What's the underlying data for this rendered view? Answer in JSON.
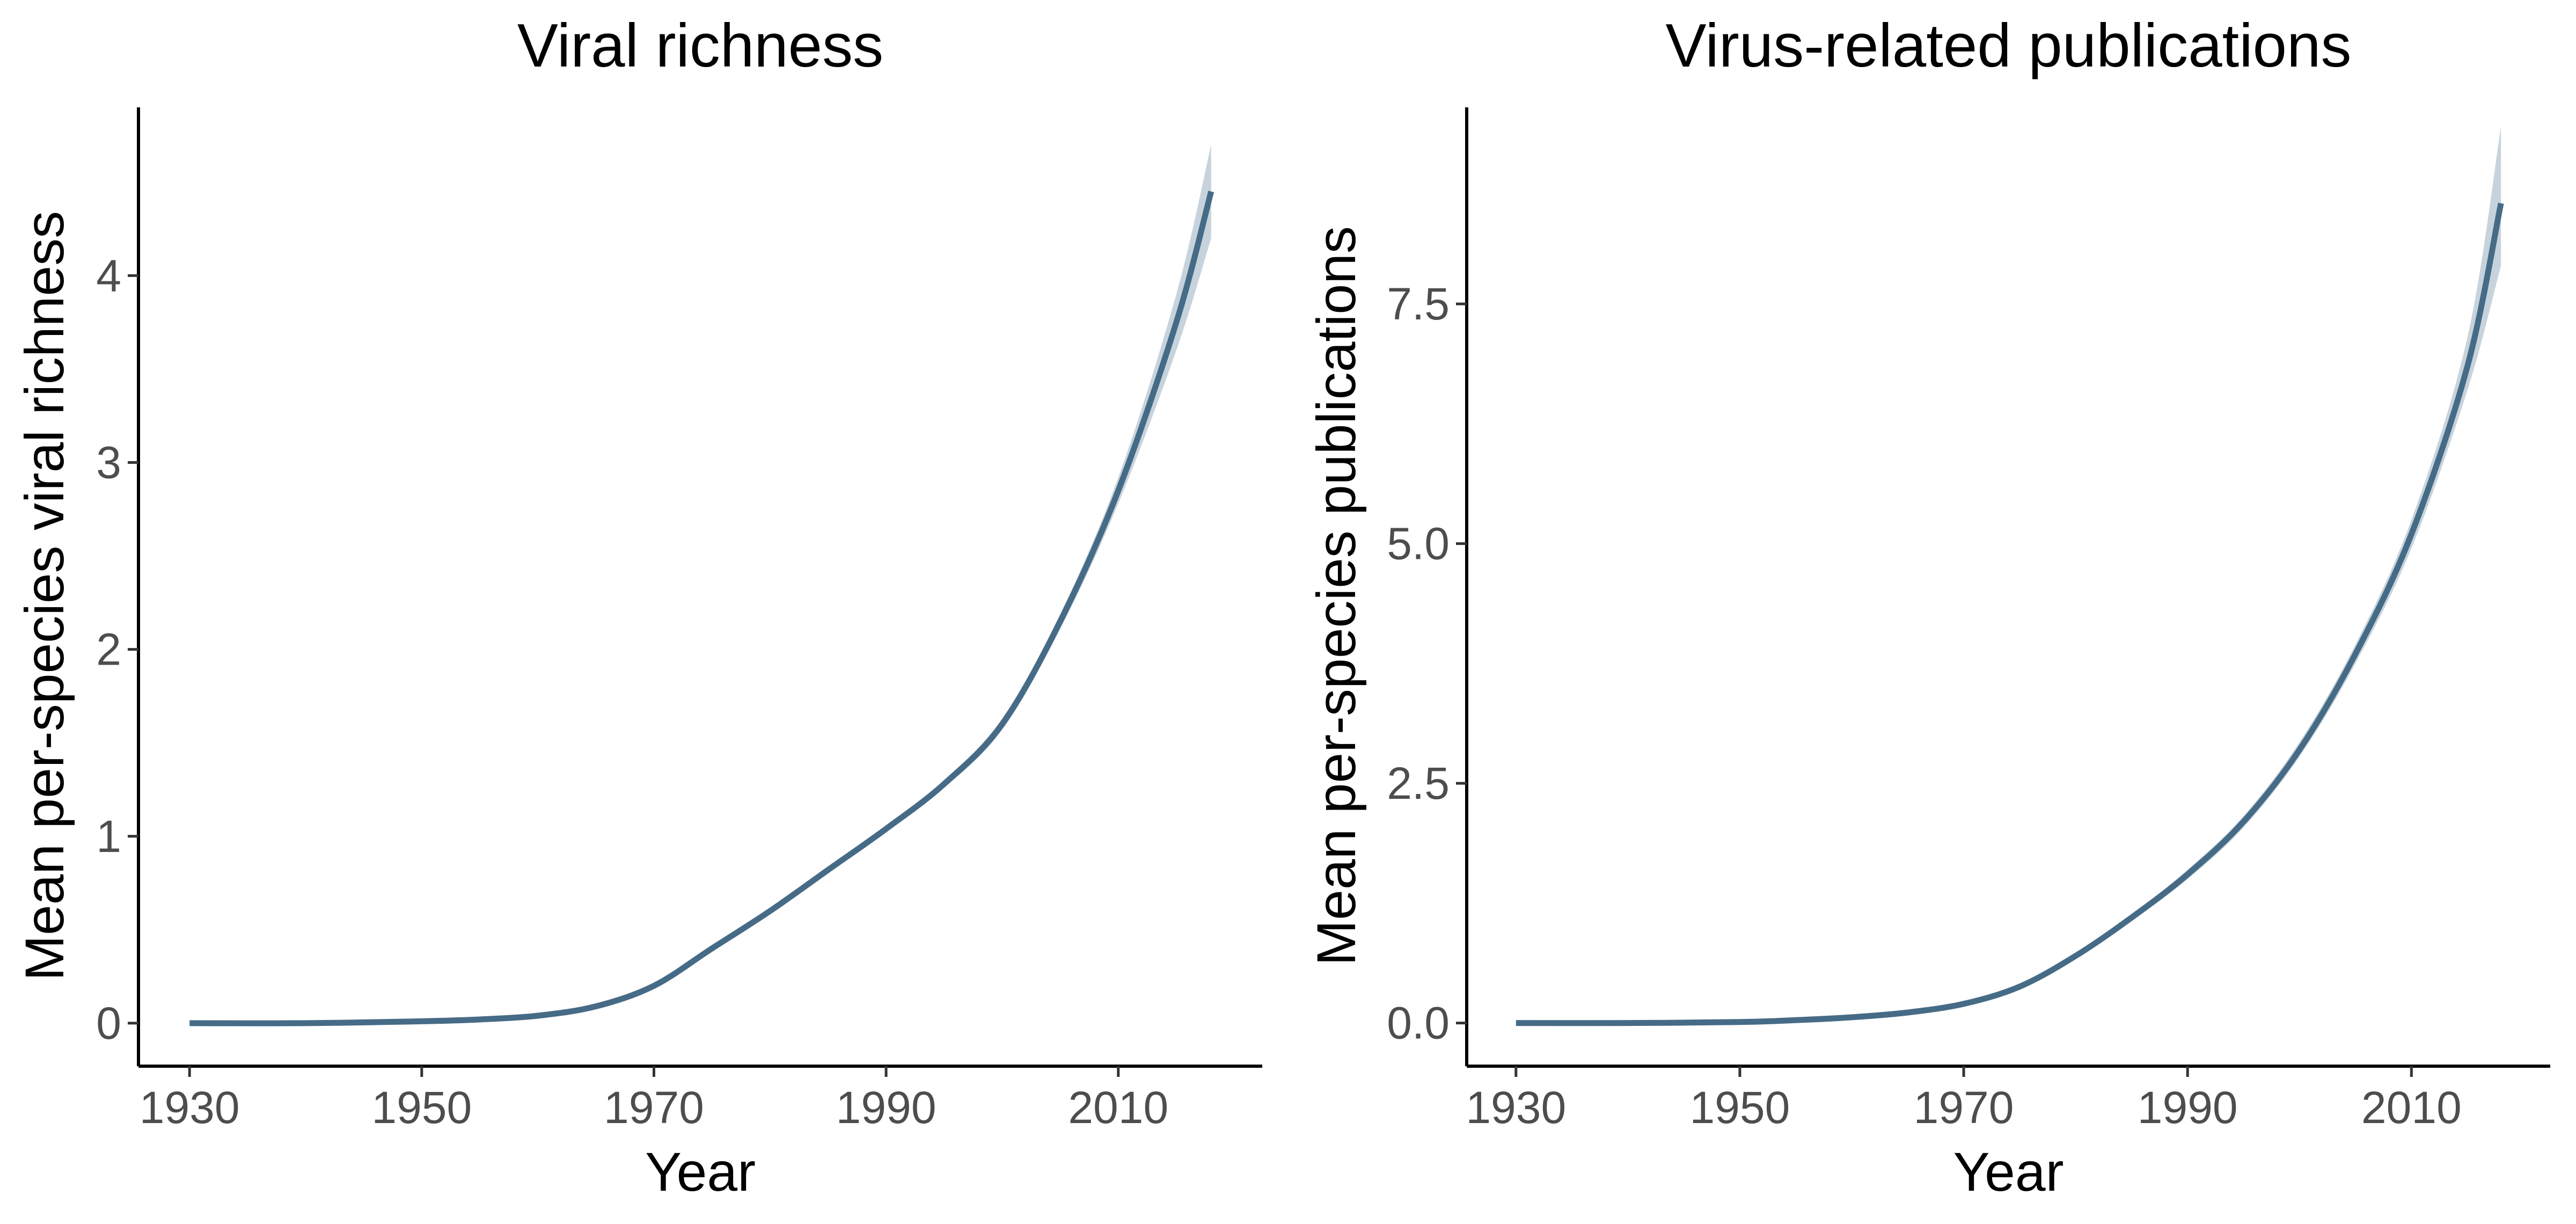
{
  "chart_data": [
    {
      "type": "line",
      "title": "Viral richness",
      "xlabel": "Year",
      "ylabel": "Mean per-species viral richness",
      "xlim": [
        1925.6,
        2022.4
      ],
      "ylim": [
        -0.23,
        4.9
      ],
      "xticks": [
        1930,
        1950,
        1970,
        1990,
        2010
      ],
      "xtick_labels": [
        "1930",
        "1950",
        "1970",
        "1990",
        "2010"
      ],
      "yticks": [
        0,
        1,
        2,
        3,
        4
      ],
      "ytick_labels": [
        "0",
        "1",
        "2",
        "3",
        "4"
      ],
      "grid": false,
      "legend": "none",
      "colors": {
        "line": "#466b86",
        "band": "#c7d3dc"
      },
      "series": [
        {
          "x": [
            1930,
            1940,
            1950,
            1955,
            1960,
            1965,
            1970,
            1975,
            1980,
            1985,
            1990,
            1995,
            2000,
            2005,
            2010,
            2015,
            2018
          ],
          "y": [
            0.0,
            0.0,
            0.01,
            0.02,
            0.04,
            0.09,
            0.2,
            0.4,
            0.6,
            0.82,
            1.04,
            1.28,
            1.6,
            2.15,
            2.85,
            3.75,
            4.45
          ],
          "lower": [
            0.0,
            0.0,
            0.01,
            0.02,
            0.04,
            0.09,
            0.19,
            0.39,
            0.59,
            0.81,
            1.03,
            1.26,
            1.57,
            2.11,
            2.78,
            3.6,
            4.2
          ],
          "upper": [
            0.0,
            0.0,
            0.01,
            0.02,
            0.04,
            0.09,
            0.21,
            0.41,
            0.61,
            0.83,
            1.05,
            1.3,
            1.63,
            2.19,
            2.92,
            3.9,
            4.7
          ]
        }
      ]
    },
    {
      "type": "line",
      "title": "Virus-related publications",
      "xlabel": "Year",
      "ylabel": "Mean per-species publications",
      "xlim": [
        1925.6,
        2022.4
      ],
      "ylim": [
        -0.45,
        9.55
      ],
      "xticks": [
        1930,
        1950,
        1970,
        1990,
        2010
      ],
      "xtick_labels": [
        "1930",
        "1950",
        "1970",
        "1990",
        "2010"
      ],
      "yticks": [
        0,
        2.5,
        5,
        7.5
      ],
      "ytick_labels": [
        "0.0",
        "2.5",
        "5.0",
        "7.5"
      ],
      "grid": false,
      "legend": "none",
      "colors": {
        "line": "#466b86",
        "band": "#c7d3dc"
      },
      "series": [
        {
          "x": [
            1930,
            1940,
            1950,
            1955,
            1960,
            1965,
            1970,
            1975,
            1980,
            1985,
            1990,
            1995,
            2000,
            2005,
            2010,
            2015,
            2018
          ],
          "y": [
            0.0,
            0.0,
            0.01,
            0.03,
            0.06,
            0.11,
            0.2,
            0.38,
            0.7,
            1.1,
            1.55,
            2.1,
            2.85,
            3.85,
            5.1,
            6.85,
            8.55
          ],
          "lower": [
            0.0,
            0.0,
            0.01,
            0.03,
            0.06,
            0.1,
            0.19,
            0.36,
            0.68,
            1.07,
            1.5,
            2.04,
            2.78,
            3.75,
            4.95,
            6.6,
            7.9
          ],
          "upper": [
            0.0,
            0.0,
            0.01,
            0.03,
            0.06,
            0.12,
            0.21,
            0.4,
            0.72,
            1.13,
            1.6,
            2.16,
            2.93,
            3.95,
            5.25,
            7.15,
            9.35
          ]
        }
      ]
    }
  ]
}
